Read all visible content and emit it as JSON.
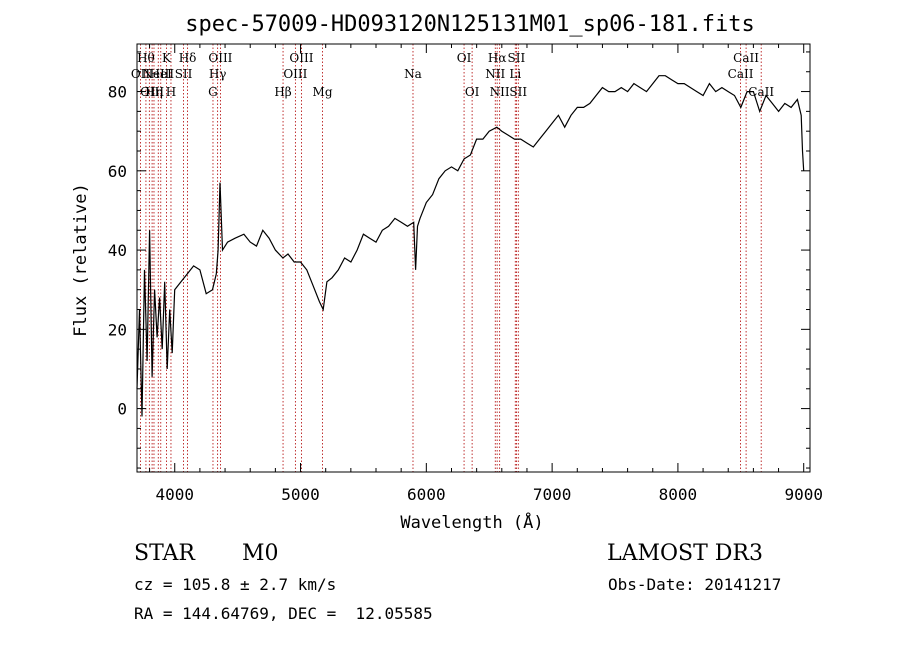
{
  "chart_data": {
    "type": "line",
    "title": "spec-57009-HD093120N125131M01_sp06-181.fits",
    "xlabel": "Wavelength (Å)",
    "ylabel": "Flux (relative)",
    "xlim": [
      3700,
      9050
    ],
    "ylim": [
      -16,
      92
    ],
    "xticks": [
      4000,
      5000,
      6000,
      7000,
      8000,
      9000
    ],
    "yticks": [
      0,
      20,
      40,
      60,
      80
    ],
    "series": [
      {
        "name": "flux",
        "x": [
          3700,
          3720,
          3740,
          3760,
          3780,
          3800,
          3820,
          3840,
          3860,
          3880,
          3900,
          3920,
          3940,
          3960,
          3980,
          4000,
          4050,
          4100,
          4150,
          4200,
          4250,
          4300,
          4330,
          4345,
          4360,
          4380,
          4420,
          4480,
          4550,
          4600,
          4650,
          4700,
          4750,
          4800,
          4860,
          4900,
          4950,
          5000,
          5050,
          5100,
          5150,
          5180,
          5210,
          5250,
          5300,
          5350,
          5400,
          5450,
          5500,
          5550,
          5600,
          5650,
          5700,
          5750,
          5800,
          5850,
          5900,
          5915,
          5930,
          5950,
          6000,
          6050,
          6100,
          6150,
          6200,
          6250,
          6300,
          6350,
          6400,
          6450,
          6500,
          6560,
          6600,
          6650,
          6700,
          6750,
          6800,
          6850,
          6900,
          6950,
          7000,
          7050,
          7100,
          7150,
          7200,
          7250,
          7300,
          7350,
          7400,
          7450,
          7500,
          7550,
          7600,
          7650,
          7700,
          7750,
          7800,
          7850,
          7900,
          7950,
          8000,
          8050,
          8100,
          8150,
          8200,
          8250,
          8300,
          8350,
          8400,
          8450,
          8500,
          8550,
          8600,
          8650,
          8700,
          8750,
          8800,
          8850,
          8900,
          8950,
          8980,
          8990,
          9000
        ],
        "y": [
          5,
          25,
          -2,
          35,
          12,
          45,
          8,
          30,
          18,
          28,
          15,
          32,
          10,
          25,
          14,
          30,
          32,
          34,
          36,
          35,
          29,
          30,
          34,
          40,
          57,
          40,
          42,
          43,
          44,
          42,
          41,
          45,
          43,
          40,
          38,
          39,
          37,
          37,
          35,
          31,
          27,
          25,
          32,
          33,
          35,
          38,
          37,
          40,
          44,
          43,
          42,
          45,
          46,
          48,
          47,
          46,
          47,
          35,
          46,
          48,
          52,
          54,
          58,
          60,
          61,
          60,
          63,
          64,
          68,
          68,
          70,
          71,
          70,
          69,
          68,
          68,
          67,
          66,
          68,
          70,
          72,
          74,
          71,
          74,
          76,
          76,
          77,
          79,
          81,
          80,
          80,
          81,
          80,
          82,
          81,
          80,
          82,
          84,
          84,
          83,
          82,
          82,
          81,
          80,
          79,
          82,
          80,
          81,
          80,
          79,
          76,
          80,
          80,
          75,
          79,
          77,
          75,
          77,
          76,
          78,
          74,
          65,
          60
        ]
      }
    ],
    "lines": [
      {
        "w": 3728,
        "label": "OII",
        "row": 2
      },
      {
        "w": 3771,
        "label": "Hθ",
        "row": 1
      },
      {
        "w": 3798,
        "label": "",
        "row": 0
      },
      {
        "w": 3820,
        "label": "OIII",
        "row": 3
      },
      {
        "w": 3835,
        "label": "Hη",
        "row": 3
      },
      {
        "w": 3869,
        "label": "NeIII",
        "row": 2
      },
      {
        "w": 3889,
        "label": "HeI",
        "row": 2
      },
      {
        "w": 3934,
        "label": "K",
        "row": 1
      },
      {
        "w": 3970,
        "label": "H",
        "row": 3
      },
      {
        "w": 4070,
        "label": "SII",
        "row": 2
      },
      {
        "w": 4102,
        "label": "Hδ",
        "row": 1
      },
      {
        "w": 4304,
        "label": "G",
        "row": 3
      },
      {
        "w": 4341,
        "label": "Hγ",
        "row": 2
      },
      {
        "w": 4363,
        "label": "OIII",
        "row": 1
      },
      {
        "w": 4861,
        "label": "Hβ",
        "row": 3
      },
      {
        "w": 4959,
        "label": "OIII",
        "row": 2
      },
      {
        "w": 5007,
        "label": "OIII",
        "row": 1
      },
      {
        "w": 5175,
        "label": "Mg",
        "row": 3
      },
      {
        "w": 5894,
        "label": "Na",
        "row": 2
      },
      {
        "w": 6300,
        "label": "OI",
        "row": 1
      },
      {
        "w": 6364,
        "label": "OI",
        "row": 3
      },
      {
        "w": 6548,
        "label": "NII",
        "row": 2
      },
      {
        "w": 6563,
        "label": "Hα",
        "row": 1
      },
      {
        "w": 6583,
        "label": "NII",
        "row": 3
      },
      {
        "w": 6707,
        "label": "Li",
        "row": 2
      },
      {
        "w": 6716,
        "label": "SII",
        "row": 1
      },
      {
        "w": 6731,
        "label": "SII",
        "row": 3
      },
      {
        "w": 8498,
        "label": "CaII",
        "row": 2
      },
      {
        "w": 8542,
        "label": "CaII",
        "row": 1
      },
      {
        "w": 8662,
        "label": "CaII",
        "row": 3
      }
    ]
  },
  "info": {
    "class": "STAR",
    "subclass": "M0",
    "survey": "LAMOST DR3",
    "cz": "cz = 105.8 ± 2.7 km/s",
    "obs_date": "Obs-Date: 20141217",
    "coords": "RA = 144.64769, DEC =  12.05585"
  }
}
